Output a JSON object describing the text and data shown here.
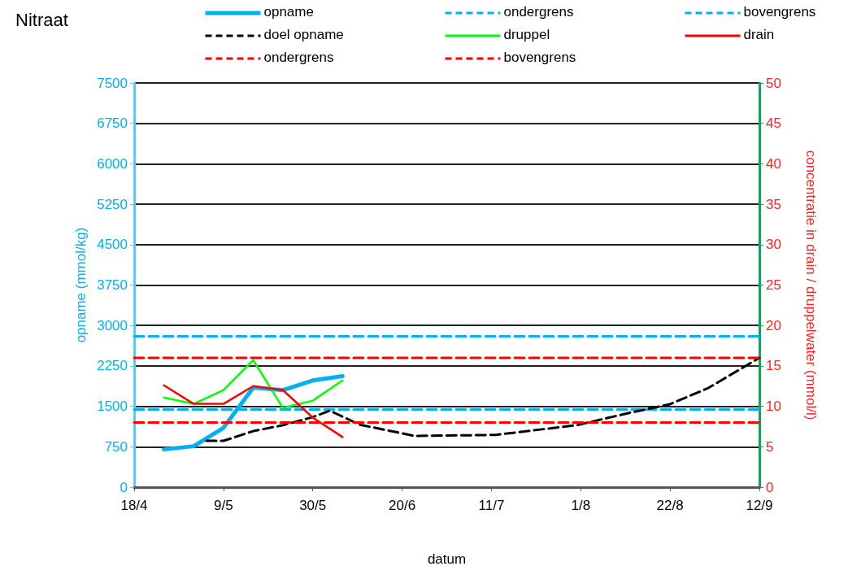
{
  "chart_data": {
    "type": "line",
    "title": "Nitraat",
    "xlabel": "datum",
    "ylabel": "opname (mmol/kg)",
    "y2label": "concentratie in drain / druppelwater (mmol/l)",
    "xlim": [
      "--04-18",
      "--09-12"
    ],
    "xticks": [
      {
        "value": "--04-18",
        "label": "18/4"
      },
      {
        "value": "--05-09",
        "label": "9/5"
      },
      {
        "value": "--05-30",
        "label": "30/5"
      },
      {
        "value": "--06-20",
        "label": "20/6"
      },
      {
        "value": "--07-11",
        "label": "11/7"
      },
      {
        "value": "--08-01",
        "label": "1/8"
      },
      {
        "value": "--08-22",
        "label": "22/8"
      },
      {
        "value": "--09-12",
        "label": "12/9"
      }
    ],
    "ylim": [
      0,
      7500
    ],
    "yticks": [
      0,
      750,
      1500,
      2250,
      3000,
      3750,
      4500,
      5250,
      6000,
      6750,
      7500
    ],
    "y2lim": [
      0,
      50
    ],
    "y2ticks": [
      0,
      5,
      10,
      15,
      20,
      25,
      30,
      35,
      40,
      45,
      50
    ],
    "grid": "y",
    "legend": "top",
    "marker": "none",
    "series": [
      {
        "name": "opname",
        "color": "#00b0f0",
        "x": [
          "--04-25",
          "--05-02",
          "--05-09",
          "--05-16",
          "--05-23",
          "--05-30",
          "--06-06"
        ],
        "values": [
          700,
          760,
          1100,
          1850,
          1800,
          1980,
          2060
        ]
      },
      {
        "name": "ondergrens",
        "color": "#00b0f0",
        "line_style": "dashed",
        "x": [
          "--04-18",
          "--09-12"
        ],
        "values": [
          1440,
          1440
        ]
      },
      {
        "name": "bovengrens",
        "color": "#00b0f0",
        "line_style": "dashed",
        "x": [
          "--04-18",
          "--09-12"
        ],
        "values": [
          2800,
          2800
        ]
      },
      {
        "name": "doel opname",
        "color": "#000000",
        "line_style": "dashed",
        "x": [
          "--05-05",
          "--05-09",
          "--05-16",
          "--05-23",
          "--05-30",
          "--06-03",
          "--06-10",
          "--06-23",
          "--07-12",
          "--07-31",
          "--08-12",
          "--08-22",
          "--08-31",
          "--09-12"
        ],
        "values": [
          860,
          860,
          1040,
          1150,
          1300,
          1420,
          1160,
          950,
          970,
          1150,
          1370,
          1540,
          1840,
          2400
        ]
      },
      {
        "name": "druppel",
        "color": "#00ff00",
        "axis": "y2",
        "x": [
          "--04-25",
          "--05-02",
          "--05-09",
          "--05-16",
          "--05-23",
          "--05-30",
          "--06-06"
        ],
        "values": [
          11.1,
          10.3,
          12,
          15.7,
          9.8,
          10.7,
          13.2
        ]
      },
      {
        "name": "drain",
        "color": "#ff0000",
        "axis": "y2",
        "x": [
          "--04-25",
          "--05-02",
          "--05-09",
          "--05-16",
          "--05-23",
          "--05-30",
          "--06-06"
        ],
        "values": [
          12.6,
          10.3,
          10.3,
          12.5,
          12,
          8.6,
          6.2
        ]
      },
      {
        "name": "ondergrens",
        "color": "#ff0000",
        "line_style": "dashed",
        "axis": "y2",
        "x": [
          "--04-18",
          "--09-12"
        ],
        "values": [
          8,
          8
        ]
      },
      {
        "name": "bovengrens",
        "color": "#ff0000",
        "line_style": "dashed",
        "axis": "y2",
        "x": [
          "--04-18",
          "--09-12"
        ],
        "values": [
          16,
          16
        ]
      }
    ]
  }
}
